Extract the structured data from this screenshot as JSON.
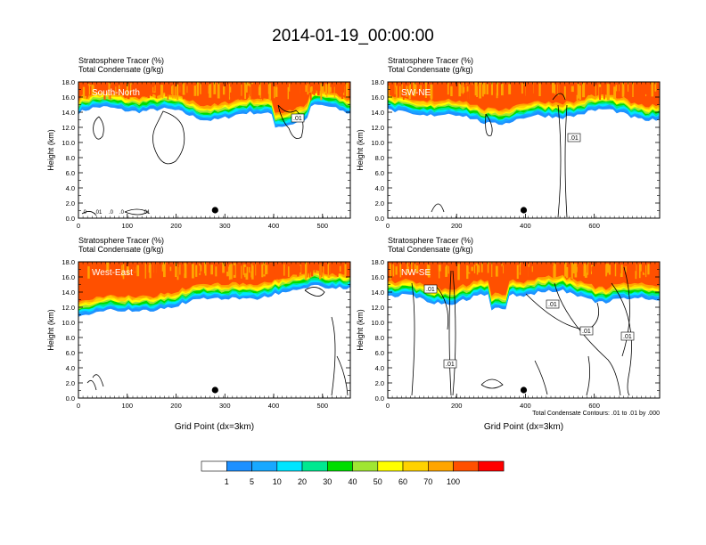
{
  "title": "2014-01-19_00:00:00",
  "colors": {
    "levels": [
      "#ffffff",
      "#1e90ff",
      "#18a8ff",
      "#00e5ff",
      "#00e890",
      "#00dd00",
      "#a0e632",
      "#ffff00",
      "#ffd200",
      "#ffa500",
      "#ff5000",
      "#ff0000"
    ]
  },
  "chart_data": [
    {
      "type": "heatmap",
      "title_line1": "Stratosphere Tracer   (%)",
      "title_line2": "Total Condensate   (g/kg)",
      "label": "South-North",
      "ylabel": "Height (km)",
      "xlabel": "",
      "xlim": [
        0,
        557
      ],
      "ylim": [
        0,
        18
      ],
      "xticks": [
        0,
        100,
        200,
        300,
        400,
        500
      ],
      "yticks": [
        "0.0",
        "2.0",
        "4.0",
        "6.0",
        "8.0",
        "10.0",
        "12.0",
        "14.0",
        "16.0",
        "18.0"
      ],
      "marker_x": 280,
      "contour_labels": [
        ".01"
      ],
      "base_labels": [
        ".0",
        ".01",
        ".0",
        ".0",
        ".01"
      ]
    },
    {
      "type": "heatmap",
      "title_line1": "Stratosphere Tracer   (%)",
      "title_line2": "Total Condensate   (g/kg)",
      "label": "SW-NE",
      "ylabel": "Height (km)",
      "xlabel": "",
      "xlim": [
        0,
        790
      ],
      "ylim": [
        0,
        18
      ],
      "xticks": [
        0,
        200,
        400,
        600
      ],
      "yticks": [
        "0.0",
        "2.0",
        "4.0",
        "6.0",
        "8.0",
        "10.0",
        "12.0",
        "14.0",
        "16.0",
        "18.0"
      ],
      "marker_x": 395,
      "contour_labels": [
        ".01"
      ],
      "base_labels": []
    },
    {
      "type": "heatmap",
      "title_line1": "Stratosphere Tracer   (%)",
      "title_line2": "Total Condensate   (g/kg)",
      "label": "West-East",
      "ylabel": "Height (km)",
      "xlabel": "Grid Point (dx=3km)",
      "xlim": [
        0,
        557
      ],
      "ylim": [
        0,
        18
      ],
      "xticks": [
        0,
        100,
        200,
        300,
        400,
        500
      ],
      "yticks": [
        "0.0",
        "2.0",
        "4.0",
        "6.0",
        "8.0",
        "10.0",
        "12.0",
        "14.0",
        "16.0",
        "18.0"
      ],
      "marker_x": 280,
      "contour_labels": [],
      "base_labels": []
    },
    {
      "type": "heatmap",
      "title_line1": "Stratosphere Tracer   (%)",
      "title_line2": "Total Condensate   (g/kg)",
      "label": "NW-SE",
      "ylabel": "Height (km)",
      "xlabel": "Grid Point (dx=3km)",
      "xlim": [
        0,
        790
      ],
      "ylim": [
        0,
        18
      ],
      "xticks": [
        0,
        200,
        400,
        600
      ],
      "yticks": [
        "0.0",
        "2.0",
        "4.0",
        "6.0",
        "8.0",
        "10.0",
        "12.0",
        "14.0",
        "16.0",
        "18.0"
      ],
      "marker_x": 395,
      "contour_labels": [
        ".01",
        ".01",
        ".01",
        ".01",
        ".01"
      ],
      "base_labels": [],
      "footnote": "Total Condensate Contours: .01 to .01 by .000"
    }
  ],
  "colorbar": {
    "labels": [
      "1",
      "5",
      "10",
      "20",
      "30",
      "40",
      "50",
      "60",
      "70",
      "100"
    ]
  }
}
